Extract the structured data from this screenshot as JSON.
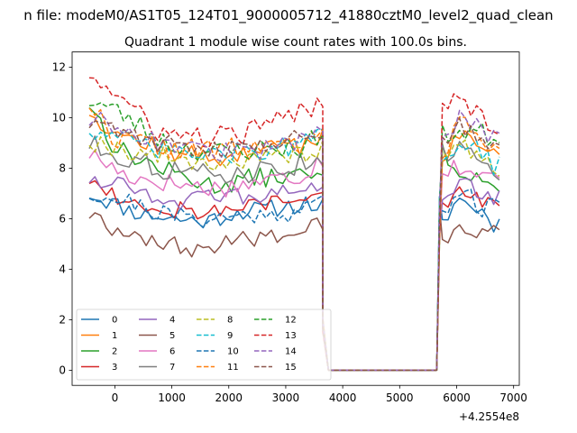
{
  "figure": {
    "suptitle": "n file: modeM0/AS1T05_124T01_9000005712_41880cztM0_level2_quad_clean",
    "offset_label": "+4.2554e8"
  },
  "chart_data": {
    "type": "line",
    "title": "Quadrant 1 module wise count rates with 100.0s bins.",
    "xlabel": "",
    "ylabel": "",
    "x_offset": 425540000,
    "xlim": [
      -750,
      7100
    ],
    "ylim": [
      -0.6,
      12.6
    ],
    "x_ticks": [
      0,
      1000,
      2000,
      3000,
      4000,
      5000,
      6000,
      7000
    ],
    "x_tick_labels": [
      "0",
      "1000",
      "2000",
      "3000",
      "4000",
      "5000",
      "6000",
      "7000"
    ],
    "y_ticks": [
      0,
      2,
      4,
      6,
      8,
      10,
      12
    ],
    "y_tick_labels": [
      "0",
      "2",
      "4",
      "6",
      "8",
      "10",
      "12"
    ],
    "grid": false,
    "legend_position": "lower-left",
    "legend_columns": 4,
    "bin_width_s": 100,
    "x_start": -450,
    "gap_from": 3750,
    "gap_to": 5650,
    "n_pre": 42,
    "n_post": 11,
    "series": [
      {
        "name": "0",
        "color": "#1f77b4",
        "dash": "solid",
        "seg1": [
          [
            -450,
            7.0
          ],
          [
            300,
            6.3
          ],
          [
            1000,
            6.0
          ],
          [
            1600,
            5.9
          ],
          [
            2200,
            6.3
          ],
          [
            2800,
            6.4
          ],
          [
            3350,
            6.6
          ],
          [
            3550,
            6.5
          ]
        ],
        "seg2": [
          [
            5750,
            5.8
          ],
          [
            6000,
            6.8
          ],
          [
            6450,
            6.3
          ],
          [
            6650,
            5.8
          ]
        ],
        "seed": 11,
        "noise": 0.18
      },
      {
        "name": "1",
        "color": "#ff7f0e",
        "dash": "solid",
        "seg1": [
          [
            -450,
            10.3
          ],
          [
            0,
            9.4
          ],
          [
            1000,
            8.6
          ],
          [
            1800,
            8.4
          ],
          [
            2600,
            8.7
          ],
          [
            3300,
            8.9
          ],
          [
            3550,
            9.3
          ]
        ],
        "seg2": [
          [
            5750,
            8.4
          ],
          [
            6050,
            9.3
          ],
          [
            6450,
            8.8
          ],
          [
            6650,
            8.5
          ]
        ],
        "seed": 12,
        "noise": 0.2
      },
      {
        "name": "2",
        "color": "#2ca02c",
        "dash": "solid",
        "seg1": [
          [
            -450,
            10.6
          ],
          [
            0,
            8.8
          ],
          [
            900,
            7.9
          ],
          [
            1700,
            7.3
          ],
          [
            2400,
            7.6
          ],
          [
            3200,
            7.7
          ],
          [
            3550,
            7.6
          ]
        ],
        "seg2": [
          [
            5750,
            8.6
          ],
          [
            6050,
            8.0
          ],
          [
            6450,
            7.6
          ],
          [
            6650,
            7.2
          ]
        ],
        "seed": 13,
        "noise": 0.2
      },
      {
        "name": "3",
        "color": "#d62728",
        "dash": "solid",
        "seg1": [
          [
            -450,
            7.6
          ],
          [
            200,
            6.7
          ],
          [
            1000,
            6.4
          ],
          [
            1800,
            6.3
          ],
          [
            2600,
            6.6
          ],
          [
            3300,
            6.6
          ],
          [
            3550,
            7.0
          ]
        ],
        "seg2": [
          [
            5750,
            6.6
          ],
          [
            6050,
            7.0
          ],
          [
            6450,
            6.7
          ],
          [
            6650,
            6.8
          ]
        ],
        "seed": 14,
        "noise": 0.2
      },
      {
        "name": "4",
        "color": "#9467bd",
        "dash": "solid",
        "seg1": [
          [
            -450,
            7.6
          ],
          [
            300,
            7.3
          ],
          [
            1000,
            6.7
          ],
          [
            1800,
            6.8
          ],
          [
            2600,
            6.9
          ],
          [
            3300,
            7.1
          ],
          [
            3550,
            7.3
          ]
        ],
        "seg2": [
          [
            5750,
            7.0
          ],
          [
            6050,
            7.5
          ],
          [
            6450,
            7.1
          ],
          [
            6650,
            6.8
          ]
        ],
        "seed": 15,
        "noise": 0.18
      },
      {
        "name": "5",
        "color": "#8c564b",
        "dash": "solid",
        "seg1": [
          [
            -450,
            6.2
          ],
          [
            0,
            5.6
          ],
          [
            800,
            5.1
          ],
          [
            1400,
            4.7
          ],
          [
            2200,
            5.2
          ],
          [
            3000,
            5.4
          ],
          [
            3550,
            5.7
          ]
        ],
        "seg2": [
          [
            5750,
            5.0
          ],
          [
            6050,
            5.9
          ],
          [
            6450,
            5.3
          ],
          [
            6650,
            5.4
          ]
        ],
        "seed": 16,
        "noise": 0.18
      },
      {
        "name": "6",
        "color": "#e377c2",
        "dash": "solid",
        "seg1": [
          [
            -450,
            8.6
          ],
          [
            200,
            7.7
          ],
          [
            1000,
            7.4
          ],
          [
            1800,
            7.2
          ],
          [
            2600,
            7.5
          ],
          [
            3300,
            7.7
          ],
          [
            3550,
            8.3
          ]
        ],
        "seg2": [
          [
            5750,
            7.9
          ],
          [
            6050,
            8.1
          ],
          [
            6450,
            7.6
          ],
          [
            6650,
            7.6
          ]
        ],
        "seed": 17,
        "noise": 0.2
      },
      {
        "name": "7",
        "color": "#7f7f7f",
        "dash": "solid",
        "seg1": [
          [
            -450,
            9.0
          ],
          [
            200,
            8.4
          ],
          [
            1000,
            7.9
          ],
          [
            1800,
            7.7
          ],
          [
            2600,
            7.9
          ],
          [
            3300,
            8.2
          ],
          [
            3550,
            8.5
          ]
        ],
        "seg2": [
          [
            5750,
            8.5
          ],
          [
            6050,
            8.8
          ],
          [
            6450,
            8.1
          ],
          [
            6650,
            7.7
          ]
        ],
        "seed": 18,
        "noise": 0.22
      },
      {
        "name": "8",
        "color": "#bcbd22",
        "dash": "dashed",
        "seg1": [
          [
            -450,
            9.1
          ],
          [
            200,
            8.7
          ],
          [
            1000,
            8.4
          ],
          [
            1800,
            8.2
          ],
          [
            2600,
            8.3
          ],
          [
            3300,
            8.6
          ],
          [
            3550,
            8.7
          ]
        ],
        "seg2": [
          [
            5750,
            8.6
          ],
          [
            6050,
            8.9
          ],
          [
            6450,
            8.3
          ],
          [
            6650,
            8.0
          ]
        ],
        "seed": 19,
        "noise": 0.2
      },
      {
        "name": "9",
        "color": "#17becf",
        "dash": "dashed",
        "seg1": [
          [
            -450,
            9.6
          ],
          [
            200,
            9.0
          ],
          [
            1000,
            8.6
          ],
          [
            1800,
            8.5
          ],
          [
            2600,
            8.7
          ],
          [
            3300,
            8.9
          ],
          [
            3550,
            9.2
          ]
        ],
        "seg2": [
          [
            5750,
            8.6
          ],
          [
            6050,
            9.1
          ],
          [
            6450,
            8.5
          ],
          [
            6650,
            8.1
          ]
        ],
        "seed": 20,
        "noise": 0.22
      },
      {
        "name": "10",
        "color": "#1f77b4",
        "dash": "dashed",
        "seg1": [
          [
            -450,
            7.0
          ],
          [
            200,
            6.7
          ],
          [
            1000,
            6.1
          ],
          [
            1800,
            6.0
          ],
          [
            2600,
            6.2
          ],
          [
            3300,
            6.3
          ],
          [
            3550,
            6.7
          ]
        ],
        "seg2": [
          [
            5750,
            6.1
          ],
          [
            6050,
            7.3
          ],
          [
            6450,
            6.3
          ],
          [
            6650,
            6.5
          ]
        ],
        "seed": 21,
        "noise": 0.2
      },
      {
        "name": "11",
        "color": "#ff7f0e",
        "dash": "dashed",
        "seg1": [
          [
            -450,
            10.6
          ],
          [
            0,
            9.2
          ],
          [
            1000,
            8.8
          ],
          [
            1800,
            8.7
          ],
          [
            2600,
            8.9
          ],
          [
            3300,
            8.8
          ],
          [
            3550,
            9.4
          ]
        ],
        "seg2": [
          [
            5750,
            8.5
          ],
          [
            6050,
            9.8
          ],
          [
            6450,
            9.4
          ],
          [
            6650,
            8.8
          ]
        ],
        "seed": 22,
        "noise": 0.22
      },
      {
        "name": "12",
        "color": "#2ca02c",
        "dash": "dashed",
        "seg1": [
          [
            -450,
            10.7
          ],
          [
            0,
            10.3
          ],
          [
            1000,
            8.9
          ],
          [
            1800,
            8.6
          ],
          [
            2600,
            8.8
          ],
          [
            3300,
            8.8
          ],
          [
            3550,
            9.3
          ]
        ],
        "seg2": [
          [
            5750,
            9.3
          ],
          [
            6050,
            9.5
          ],
          [
            6450,
            9.4
          ],
          [
            6650,
            9.2
          ]
        ],
        "seed": 23,
        "noise": 0.22
      },
      {
        "name": "13",
        "color": "#d62728",
        "dash": "dashed",
        "seg1": [
          [
            -450,
            11.8
          ],
          [
            0,
            10.9
          ],
          [
            800,
            9.4
          ],
          [
            1500,
            9.2
          ],
          [
            2200,
            9.3
          ],
          [
            3000,
            10.0
          ],
          [
            3550,
            10.5
          ]
        ],
        "seg2": [
          [
            5750,
            10.5
          ],
          [
            6050,
            11.0
          ],
          [
            6450,
            10.0
          ],
          [
            6650,
            9.7
          ]
        ],
        "seed": 24,
        "noise": 0.22
      },
      {
        "name": "14",
        "color": "#9467bd",
        "dash": "dashed",
        "seg1": [
          [
            -450,
            9.9
          ],
          [
            0,
            9.8
          ],
          [
            800,
            9.0
          ],
          [
            1500,
            8.7
          ],
          [
            2200,
            8.6
          ],
          [
            3000,
            8.9
          ],
          [
            3550,
            9.6
          ]
        ],
        "seg2": [
          [
            5750,
            9.5
          ],
          [
            6050,
            9.9
          ],
          [
            6450,
            9.5
          ],
          [
            6650,
            9.1
          ]
        ],
        "seed": 25,
        "noise": 0.2
      },
      {
        "name": "15",
        "color": "#8c564b",
        "dash": "dashed",
        "seg1": [
          [
            -450,
            9.8
          ],
          [
            0,
            9.6
          ],
          [
            800,
            9.0
          ],
          [
            1500,
            8.7
          ],
          [
            2200,
            8.9
          ],
          [
            3000,
            9.1
          ],
          [
            3550,
            9.4
          ]
        ],
        "seg2": [
          [
            5750,
            9.0
          ],
          [
            6050,
            9.8
          ],
          [
            6450,
            9.2
          ],
          [
            6650,
            8.8
          ]
        ],
        "seed": 26,
        "noise": 0.2
      }
    ]
  }
}
